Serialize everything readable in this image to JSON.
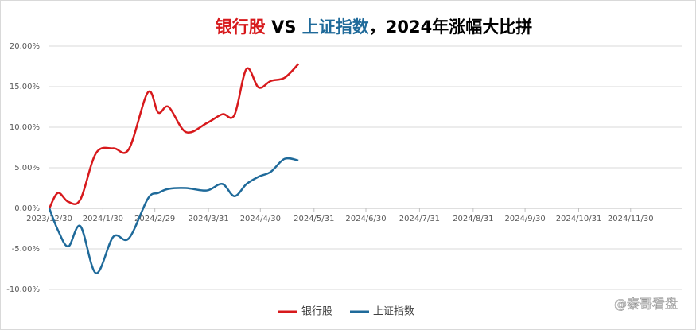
{
  "chart_data": {
    "type": "line",
    "title": "银行股 VS 上证指数，2024年涨幅大比拼",
    "x": [
      "2023/12/30",
      "2024/1/4",
      "2024/1/10",
      "2024/1/17",
      "2024/1/26",
      "2024/2/5",
      "2024/2/14",
      "2024/2/25",
      "2024/3/2",
      "2024/3/8",
      "2024/3/18",
      "2024/3/30",
      "2024/4/8",
      "2024/4/15",
      "2024/4/22",
      "2024/4/29",
      "2024/5/6",
      "2024/5/14",
      "2024/5/22"
    ],
    "series": [
      {
        "name": "银行股",
        "color": "#d7191c",
        "values": [
          0,
          1.9,
          0.8,
          1.1,
          6.8,
          7.4,
          7.3,
          14.3,
          11.8,
          12.5,
          9.4,
          10.5,
          11.6,
          11.5,
          17.2,
          14.9,
          15.7,
          16.1,
          17.8
        ]
      },
      {
        "name": "上证指数",
        "color": "#1f6a9a",
        "values": [
          0,
          -2.7,
          -4.7,
          -2.2,
          -8.0,
          -3.5,
          -3.7,
          1.2,
          1.9,
          2.4,
          2.5,
          2.2,
          3.0,
          1.5,
          3.0,
          3.9,
          4.5,
          6.1,
          5.9
        ]
      }
    ],
    "xlim": [
      "2023/12/30",
      "2024/12/30"
    ],
    "xticks": [
      "2023/12/30",
      "2024/1/30",
      "2024/2/29",
      "2024/3/31",
      "2024/4/30",
      "2024/5/31",
      "2024/6/30",
      "2024/7/31",
      "2024/8/31",
      "2024/9/30",
      "2024/10/31",
      "2024/11/30"
    ],
    "ylim": [
      -10,
      20
    ],
    "yticks": [
      {
        "value": -10,
        "label": "-10.00%"
      },
      {
        "value": -5,
        "label": "-5.00%"
      },
      {
        "value": 0,
        "label": "0.00%"
      },
      {
        "value": 5,
        "label": "5.00%"
      },
      {
        "value": 10,
        "label": "10.00%"
      },
      {
        "value": 15,
        "label": "15.00%"
      },
      {
        "value": 20,
        "label": "20.00%"
      }
    ],
    "grid": true,
    "legend": "bottom",
    "watermark": "@秦哥看盘"
  }
}
